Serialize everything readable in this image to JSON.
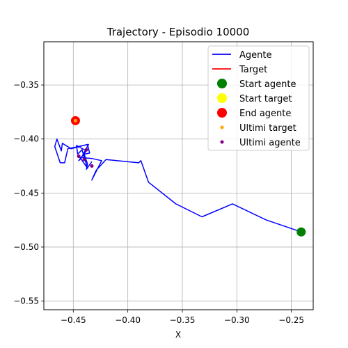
{
  "chart_data": {
    "type": "line",
    "title": "Trajectory - Episodio 10000",
    "xlabel": "X",
    "ylabel": "",
    "xlim": [
      -0.477,
      -0.23
    ],
    "ylim": [
      -0.558,
      -0.31
    ],
    "grid": true,
    "legend_position": "top-right",
    "x_ticks": [
      -0.45,
      -0.4,
      -0.35,
      -0.3,
      -0.25
    ],
    "x_tick_labels": [
      "−0.45",
      "−0.40",
      "−0.35",
      "−0.30",
      "−0.25"
    ],
    "y_ticks": [
      -0.35,
      -0.4,
      -0.45,
      -0.5,
      -0.55
    ],
    "y_tick_labels": [
      "−0.35",
      "−0.40",
      "−0.45",
      "−0.50",
      "−0.55"
    ],
    "colors": {
      "agent_line": "#0000ff",
      "target_line": "#ff0000",
      "start_agent": "#008000",
      "start_target": "#ffff00",
      "end_agent": "#ff0000",
      "last_target": "#ffa500",
      "last_agent": "#800080",
      "grid": "#b0b0b0"
    },
    "series": [
      {
        "name": "Agente",
        "kind": "line",
        "color_key": "agent_line",
        "points": [
          [
            -0.241,
            -0.486
          ],
          [
            -0.273,
            -0.475
          ],
          [
            -0.304,
            -0.46
          ],
          [
            -0.332,
            -0.472
          ],
          [
            -0.356,
            -0.46
          ],
          [
            -0.381,
            -0.44
          ],
          [
            -0.388,
            -0.42
          ],
          [
            -0.39,
            -0.422
          ],
          [
            -0.42,
            -0.419
          ],
          [
            -0.429,
            -0.429
          ],
          [
            -0.433,
            -0.438
          ],
          [
            -0.424,
            -0.42
          ],
          [
            -0.433,
            -0.418
          ],
          [
            -0.444,
            -0.417
          ],
          [
            -0.437,
            -0.427
          ],
          [
            -0.442,
            -0.41
          ],
          [
            -0.446,
            -0.414
          ],
          [
            -0.447,
            -0.406
          ],
          [
            -0.438,
            -0.411
          ],
          [
            -0.445,
            -0.42
          ],
          [
            -0.443,
            -0.418
          ],
          [
            -0.436,
            -0.405
          ],
          [
            -0.455,
            -0.409
          ],
          [
            -0.458,
            -0.422
          ],
          [
            -0.462,
            -0.422
          ],
          [
            -0.467,
            -0.407
          ],
          [
            -0.465,
            -0.4
          ],
          [
            -0.461,
            -0.411
          ],
          [
            -0.46,
            -0.404
          ],
          [
            -0.452,
            -0.409
          ],
          [
            -0.437,
            -0.405
          ],
          [
            -0.435,
            -0.413
          ],
          [
            -0.44,
            -0.414
          ],
          [
            -0.437,
            -0.423
          ],
          [
            -0.438,
            -0.428
          ],
          [
            -0.433,
            -0.421
          ]
        ]
      },
      {
        "name": "Target",
        "kind": "line",
        "color_key": "target_line",
        "points": []
      },
      {
        "name": "Start agente",
        "kind": "marker",
        "color_key": "start_agent",
        "size": "large",
        "points": [
          [
            -0.241,
            -0.486
          ]
        ]
      },
      {
        "name": "Start target",
        "kind": "marker",
        "color_key": "start_target",
        "size": "large",
        "points": [
          [
            -0.448,
            -0.383
          ]
        ]
      },
      {
        "name": "End agente",
        "kind": "marker",
        "color_key": "end_agent",
        "size": "large",
        "points": [
          [
            -0.448,
            -0.383
          ]
        ]
      },
      {
        "name": "Ultimi target",
        "kind": "marker",
        "color_key": "last_target",
        "size": "small",
        "points": [
          [
            -0.448,
            -0.383
          ]
        ]
      },
      {
        "name": "Ultimi agente",
        "kind": "marker",
        "color_key": "last_agent",
        "size": "small",
        "points": [
          [
            -0.438,
            -0.41
          ],
          [
            -0.433,
            -0.425
          ],
          [
            -0.445,
            -0.416
          ],
          [
            -0.44,
            -0.419
          ]
        ]
      }
    ],
    "legend": [
      {
        "label": "Agente",
        "symbol": "line",
        "color_key": "agent_line"
      },
      {
        "label": "Target",
        "symbol": "line",
        "color_key": "target_line"
      },
      {
        "label": "Start agente",
        "symbol": "dot-large",
        "color_key": "start_agent"
      },
      {
        "label": "Start target",
        "symbol": "dot-large",
        "color_key": "start_target"
      },
      {
        "label": "End agente",
        "symbol": "dot-large",
        "color_key": "end_agent"
      },
      {
        "label": "Ultimi target",
        "symbol": "dot-small",
        "color_key": "last_target"
      },
      {
        "label": "Ultimi agente",
        "symbol": "dot-small",
        "color_key": "last_agent"
      }
    ]
  }
}
